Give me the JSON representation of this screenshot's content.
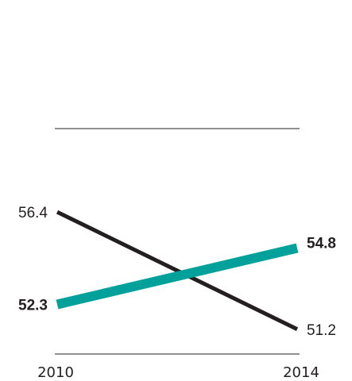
{
  "chart_data": {
    "type": "line",
    "x": [
      "2010",
      "2014"
    ],
    "series": [
      {
        "values": [
          56.4,
          51.2
        ],
        "color": "#231f20",
        "emphasis": false
      },
      {
        "values": [
          52.3,
          54.8
        ],
        "color": "#00a19a",
        "emphasis": true
      }
    ],
    "labels": {
      "series0_start": "56.4",
      "series0_end": "51.2",
      "series1_start": "52.3",
      "series1_end": "54.8"
    },
    "ylim": [
      50.1,
      60.1
    ],
    "grid": false,
    "legend": "none"
  }
}
